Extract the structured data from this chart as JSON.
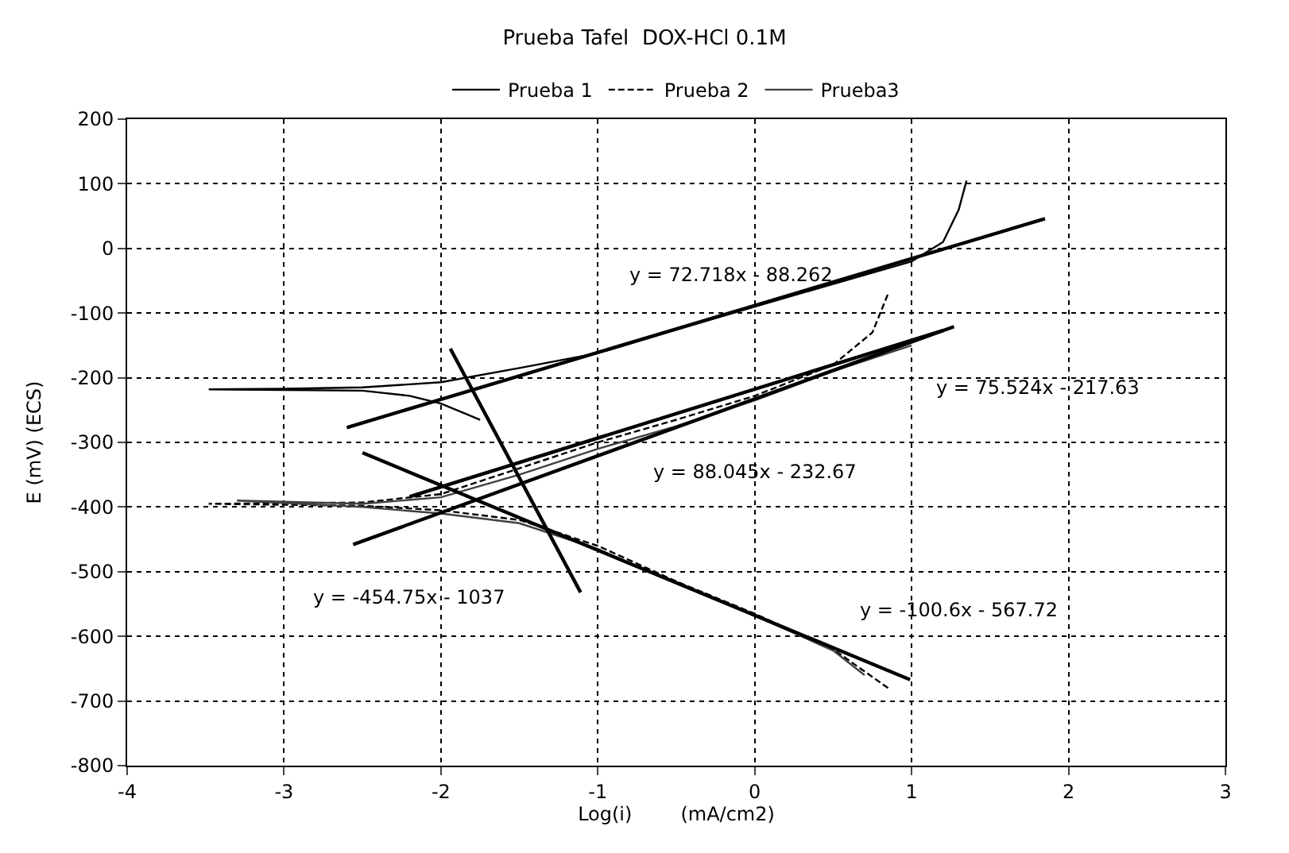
{
  "chart_data": {
    "type": "line",
    "title": "Prueba Tafel  DOX-HCl 0.1M",
    "xlabel": "Log(i)        (mA/cm2)",
    "ylabel": "E (mV) (ECS)",
    "xlim": [
      -4,
      3
    ],
    "xticks": [
      -4,
      -3,
      -2,
      -1,
      0,
      1,
      2,
      3
    ],
    "ylim": [
      -800,
      200
    ],
    "yticks": [
      200,
      100,
      0,
      -100,
      -200,
      -300,
      -400,
      -500,
      -600,
      -700,
      -800
    ],
    "grid": true,
    "legend": "top",
    "marker": "none",
    "series": [
      {
        "name": "Prueba 1",
        "color": "#000000",
        "line_style": "solid",
        "x": [
          -1.75,
          -1.85,
          -2.0,
          -2.2,
          -2.5,
          -3.48,
          -3.0,
          -2.5,
          -2.0,
          -1.5,
          -1.0,
          -0.5,
          0.0,
          0.5,
          1.0,
          1.2,
          1.3,
          1.35
        ],
        "values": [
          -265,
          -255,
          -240,
          -228,
          -220,
          -218,
          -217,
          -215,
          -207,
          -185,
          -162,
          -125,
          -90,
          -55,
          -20,
          10,
          60,
          105
        ]
      },
      {
        "name": "Prueba 2",
        "color": "#000000",
        "line_style": "dashed",
        "x": [
          0.85,
          0.5,
          0.0,
          -0.5,
          -1.0,
          -1.5,
          -2.0,
          -2.5,
          -3.48,
          -2.5,
          -2.0,
          -1.5,
          -1.0,
          -0.5,
          0.0,
          0.5,
          0.75,
          0.85
        ],
        "values": [
          -680,
          -620,
          -565,
          -515,
          -460,
          -420,
          -405,
          -398,
          -395,
          -393,
          -380,
          -340,
          -300,
          -265,
          -228,
          -180,
          -130,
          -70
        ]
      },
      {
        "name": "Prueba3",
        "color": "#404040",
        "line_style": "solid",
        "x": [
          0.7,
          0.5,
          0.0,
          -0.5,
          -1.0,
          -1.5,
          -2.0,
          -2.5,
          -3.3,
          -2.5,
          -2.0,
          -1.5,
          -1.0,
          -0.5,
          0.0,
          0.5,
          1.0
        ],
        "values": [
          -660,
          -622,
          -568,
          -518,
          -465,
          -425,
          -410,
          -400,
          -390,
          -395,
          -385,
          -350,
          -310,
          -275,
          -235,
          -190,
          -150
        ]
      },
      {
        "color": "#000000",
        "line_style": "solid",
        "x": [
          -2.6,
          1.85
        ],
        "values": [
          -277,
          46
        ]
      },
      {
        "color": "#000000",
        "line_style": "solid",
        "x": [
          -2.2,
          1.2
        ],
        "values": [
          -384,
          -127
        ]
      },
      {
        "color": "#000000",
        "line_style": "solid",
        "x": [
          -2.56,
          1.27
        ],
        "values": [
          -458,
          -121
        ]
      },
      {
        "color": "#000000",
        "line_style": "solid",
        "x": [
          -1.94,
          -1.11
        ],
        "values": [
          -155,
          -532
        ]
      },
      {
        "color": "#000000",
        "line_style": "solid",
        "x": [
          -2.5,
          0.99
        ],
        "values": [
          -316,
          -667
        ]
      }
    ],
    "annotations": [
      "y = 72.718x - 88.262",
      "y = 75.524x - 217.63",
      "y = 88.045x - 232.67",
      "y = -454.75x - 1037",
      "y = -100.6x - 567.72"
    ]
  }
}
